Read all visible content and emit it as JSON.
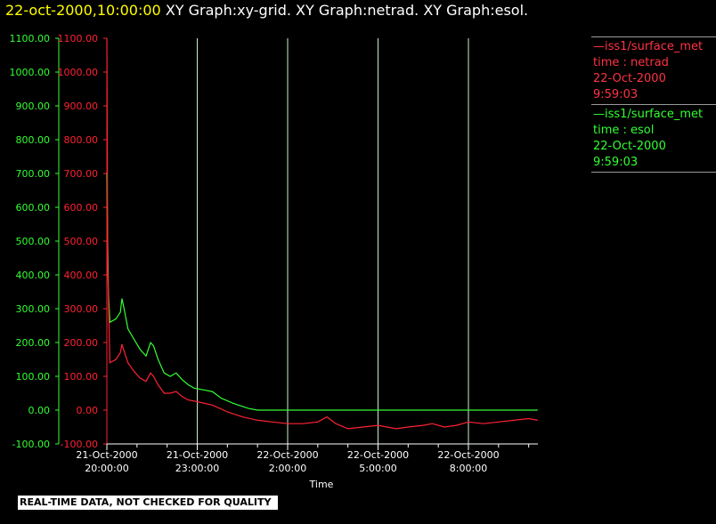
{
  "header": {
    "timestamp": "22-oct-2000,10:00:00",
    "graphs_text": "XY Graph:xy-grid.  XY Graph:netrad.  XY Graph:esol."
  },
  "legend": [
    {
      "series": "netrad",
      "lines": [
        "—iss1/surface_met",
        "time : netrad",
        "22-Oct-2000",
        "9:59:03"
      ]
    },
    {
      "series": "esol",
      "lines": [
        "—iss1/surface_met",
        "time : esol",
        "22-Oct-2000",
        "9:59:03"
      ]
    }
  ],
  "footer_note": "REAL-TIME DATA, NOT CHECKED FOR QUALITY",
  "colors": {
    "netrad": "#ff2233",
    "esol": "#33ff33",
    "grid": "#c8f0c8",
    "axis": "#ffffff"
  },
  "chart_data": {
    "type": "line",
    "xlabel": "Time",
    "ylim": [
      -100,
      1100
    ],
    "y_ticks": [
      "1100.00",
      "1000.00",
      "900.00",
      "800.00",
      "700.00",
      "600.00",
      "500.00",
      "400.00",
      "300.00",
      "200.00",
      "100.00",
      "0.00",
      "-100.00"
    ],
    "x_ticks": [
      {
        "date": "21-Oct-2000",
        "time": "20:00:00",
        "hours": 0
      },
      {
        "date": "21-Oct-2000",
        "time": "23:00:00",
        "hours": 3
      },
      {
        "date": "22-Oct-2000",
        "time": "2:00:00",
        "hours": 6
      },
      {
        "date": "22-Oct-2000",
        "time": "5:00:00",
        "hours": 9
      },
      {
        "date": "22-Oct-2000",
        "time": "8:00:00",
        "hours": 12
      }
    ],
    "x_range_hours": [
      0,
      14.3
    ],
    "grid": true,
    "series": [
      {
        "key": "esol",
        "points": [
          [
            0,
            700
          ],
          [
            0.05,
            350
          ],
          [
            0.1,
            260
          ],
          [
            0.3,
            270
          ],
          [
            0.45,
            290
          ],
          [
            0.5,
            330
          ],
          [
            0.55,
            310
          ],
          [
            0.7,
            240
          ],
          [
            0.9,
            210
          ],
          [
            1.1,
            180
          ],
          [
            1.3,
            160
          ],
          [
            1.45,
            200
          ],
          [
            1.55,
            190
          ],
          [
            1.7,
            150
          ],
          [
            1.9,
            110
          ],
          [
            2.1,
            100
          ],
          [
            2.3,
            110
          ],
          [
            2.5,
            90
          ],
          [
            2.7,
            75
          ],
          [
            2.9,
            65
          ],
          [
            3.2,
            60
          ],
          [
            3.5,
            55
          ],
          [
            3.8,
            35
          ],
          [
            4.2,
            20
          ],
          [
            4.7,
            5
          ],
          [
            5.0,
            0
          ],
          [
            6,
            0
          ],
          [
            8,
            0
          ],
          [
            10,
            0
          ],
          [
            12,
            0
          ],
          [
            12.8,
            0
          ],
          [
            13.5,
            0
          ],
          [
            14.3,
            0
          ]
        ]
      },
      {
        "key": "netrad",
        "points": [
          [
            0,
            1100
          ],
          [
            0.03,
            420
          ],
          [
            0.1,
            140
          ],
          [
            0.3,
            150
          ],
          [
            0.45,
            170
          ],
          [
            0.5,
            195
          ],
          [
            0.55,
            180
          ],
          [
            0.7,
            140
          ],
          [
            0.9,
            115
          ],
          [
            1.1,
            95
          ],
          [
            1.3,
            85
          ],
          [
            1.45,
            110
          ],
          [
            1.55,
            100
          ],
          [
            1.7,
            75
          ],
          [
            1.9,
            50
          ],
          [
            2.1,
            50
          ],
          [
            2.3,
            55
          ],
          [
            2.5,
            40
          ],
          [
            2.7,
            30
          ],
          [
            3.0,
            25
          ],
          [
            3.5,
            15
          ],
          [
            4.0,
            -5
          ],
          [
            4.5,
            -20
          ],
          [
            5.0,
            -30
          ],
          [
            5.5,
            -35
          ],
          [
            6.0,
            -40
          ],
          [
            6.5,
            -40
          ],
          [
            7.0,
            -35
          ],
          [
            7.3,
            -20
          ],
          [
            7.6,
            -40
          ],
          [
            8.0,
            -55
          ],
          [
            8.5,
            -50
          ],
          [
            9.0,
            -45
          ],
          [
            9.3,
            -50
          ],
          [
            9.6,
            -55
          ],
          [
            10.0,
            -50
          ],
          [
            10.5,
            -45
          ],
          [
            10.8,
            -40
          ],
          [
            11.2,
            -50
          ],
          [
            11.6,
            -45
          ],
          [
            12.0,
            -35
          ],
          [
            12.5,
            -40
          ],
          [
            13.0,
            -35
          ],
          [
            13.5,
            -30
          ],
          [
            14.0,
            -25
          ],
          [
            14.3,
            -30
          ]
        ]
      }
    ]
  }
}
